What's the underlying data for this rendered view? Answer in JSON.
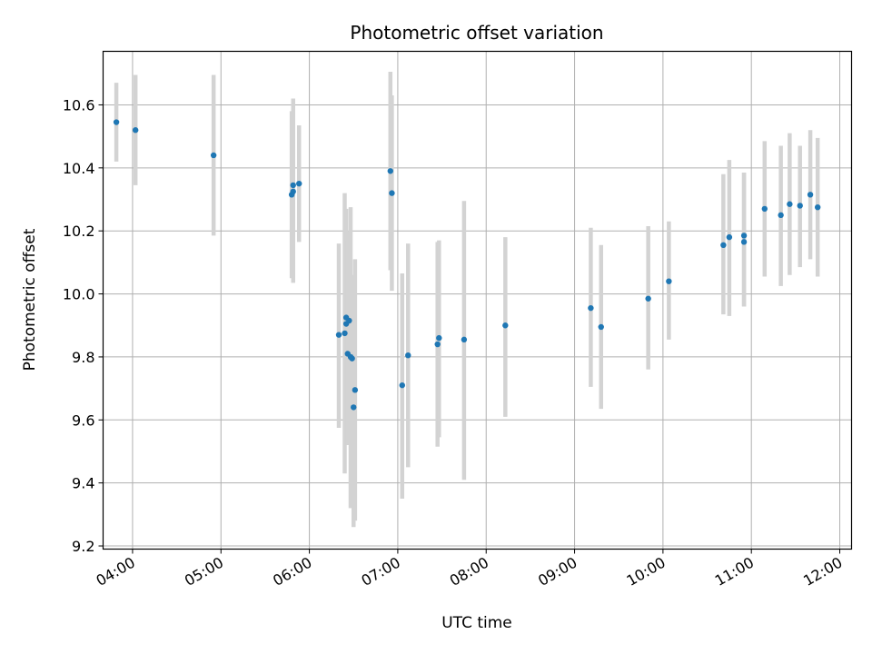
{
  "chart_data": {
    "type": "scatter",
    "title": "Photometric offset variation",
    "xlabel": "UTC time",
    "ylabel": "Photometric offset",
    "grid": true,
    "x_axis": {
      "unit": "time",
      "range": [
        "03:40",
        "12:08"
      ],
      "ticks": [
        "04:00",
        "05:00",
        "06:00",
        "07:00",
        "08:00",
        "09:00",
        "10:00",
        "11:00",
        "12:00"
      ]
    },
    "y_axis": {
      "range": [
        9.19,
        10.77
      ],
      "ticks": [
        "9.2",
        "9.4",
        "9.6",
        "9.8",
        "10.0",
        "10.2",
        "10.4",
        "10.6"
      ]
    },
    "colors": {
      "points": "#1f77b4",
      "errorbars": "#d3d3d3"
    },
    "points": [
      {
        "t": "03:49",
        "y": 10.545,
        "lo": 10.42,
        "hi": 10.67
      },
      {
        "t": "04:02",
        "y": 10.52,
        "lo": 10.345,
        "hi": 10.695
      },
      {
        "t": "04:55",
        "y": 10.44,
        "lo": 10.185,
        "hi": 10.695
      },
      {
        "t": "05:48",
        "y": 10.315,
        "lo": 10.05,
        "hi": 10.58
      },
      {
        "t": "05:49",
        "y": 10.345,
        "lo": 10.035,
        "hi": 10.62
      },
      {
        "t": "05:49",
        "y": 10.325,
        "lo": 10.04,
        "hi": 10.61
      },
      {
        "t": "05:53",
        "y": 10.35,
        "lo": 10.165,
        "hi": 10.535
      },
      {
        "t": "06:20",
        "y": 9.87,
        "lo": 9.575,
        "hi": 10.16
      },
      {
        "t": "06:24",
        "y": 9.875,
        "lo": 9.43,
        "hi": 10.32
      },
      {
        "t": "06:25",
        "y": 9.925,
        "lo": 9.6,
        "hi": 10.27
      },
      {
        "t": "06:25",
        "y": 9.905,
        "lo": 9.6,
        "hi": 10.2
      },
      {
        "t": "06:26",
        "y": 9.81,
        "lo": 9.52,
        "hi": 10.17
      },
      {
        "t": "06:27",
        "y": 9.915,
        "lo": 9.62,
        "hi": 10.2
      },
      {
        "t": "06:28",
        "y": 9.8,
        "lo": 9.32,
        "hi": 10.275
      },
      {
        "t": "06:29",
        "y": 9.795,
        "lo": 9.53,
        "hi": 10.06
      },
      {
        "t": "06:30",
        "y": 9.64,
        "lo": 9.26,
        "hi": 10.02
      },
      {
        "t": "06:31",
        "y": 9.695,
        "lo": 9.28,
        "hi": 10.11
      },
      {
        "t": "06:55",
        "y": 10.39,
        "lo": 10.075,
        "hi": 10.705
      },
      {
        "t": "06:56",
        "y": 10.32,
        "lo": 10.01,
        "hi": 10.63
      },
      {
        "t": "07:03",
        "y": 9.71,
        "lo": 9.35,
        "hi": 10.065
      },
      {
        "t": "07:07",
        "y": 9.805,
        "lo": 9.45,
        "hi": 10.16
      },
      {
        "t": "07:27",
        "y": 9.84,
        "lo": 9.515,
        "hi": 10.165
      },
      {
        "t": "07:28",
        "y": 9.86,
        "lo": 9.545,
        "hi": 10.17
      },
      {
        "t": "07:45",
        "y": 9.855,
        "lo": 9.41,
        "hi": 10.295
      },
      {
        "t": "08:13",
        "y": 9.9,
        "lo": 9.61,
        "hi": 10.18
      },
      {
        "t": "09:11",
        "y": 9.955,
        "lo": 9.705,
        "hi": 10.21
      },
      {
        "t": "09:18",
        "y": 9.895,
        "lo": 9.635,
        "hi": 10.155
      },
      {
        "t": "09:50",
        "y": 9.985,
        "lo": 9.76,
        "hi": 10.215
      },
      {
        "t": "10:04",
        "y": 10.04,
        "lo": 9.855,
        "hi": 10.23
      },
      {
        "t": "10:41",
        "y": 10.155,
        "lo": 9.935,
        "hi": 10.38
      },
      {
        "t": "10:45",
        "y": 10.18,
        "lo": 9.93,
        "hi": 10.425
      },
      {
        "t": "10:55",
        "y": 10.165,
        "lo": 9.96,
        "hi": 10.385
      },
      {
        "t": "10:55",
        "y": 10.185,
        "lo": 9.96,
        "hi": 10.385
      },
      {
        "t": "11:09",
        "y": 10.27,
        "lo": 10.055,
        "hi": 10.485
      },
      {
        "t": "11:20",
        "y": 10.25,
        "lo": 10.025,
        "hi": 10.47
      },
      {
        "t": "11:26",
        "y": 10.285,
        "lo": 10.06,
        "hi": 10.51
      },
      {
        "t": "11:33",
        "y": 10.28,
        "lo": 10.085,
        "hi": 10.47
      },
      {
        "t": "11:40",
        "y": 10.315,
        "lo": 10.11,
        "hi": 10.52
      },
      {
        "t": "11:45",
        "y": 10.275,
        "lo": 10.055,
        "hi": 10.495
      }
    ]
  }
}
